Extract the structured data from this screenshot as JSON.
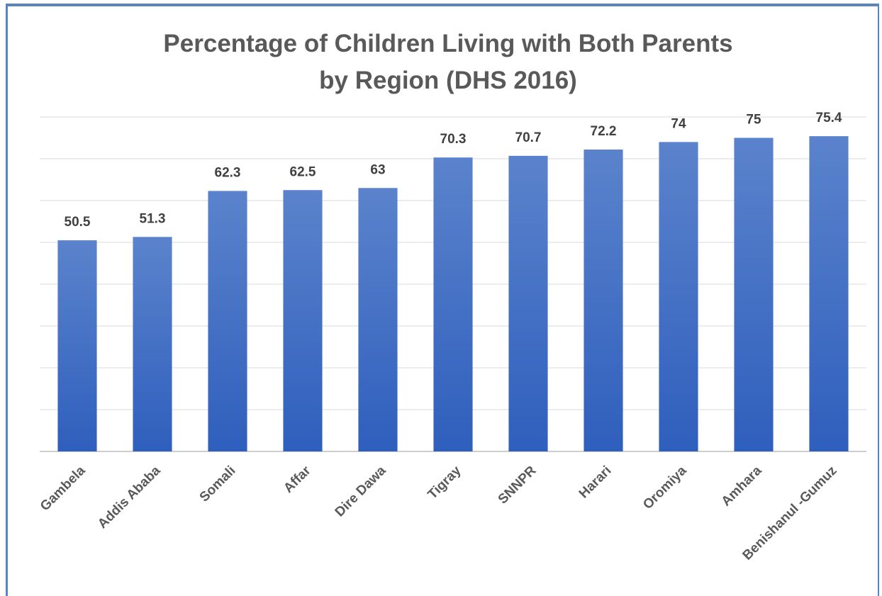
{
  "chart_data": {
    "type": "bar",
    "title_lines": [
      "Percentage of Children Living with Both Parents",
      "by Region (DHS 2016)"
    ],
    "categories": [
      "Gambela",
      "Addis Ababa",
      "Somali",
      "Affar",
      "Dire Dawa",
      "Tigray",
      "SNNPR",
      "Harari",
      "Oromiya",
      "Amhara",
      "Benishanul -Gumuz"
    ],
    "values": [
      50.5,
      51.3,
      62.3,
      62.5,
      63,
      70.3,
      70.7,
      72.2,
      74,
      75,
      75.4
    ],
    "value_labels": [
      "50.5",
      "51.3",
      "62.3",
      "62.5",
      "63",
      "70.3",
      "70.7",
      "72.2",
      "74",
      "75",
      "75.4"
    ],
    "ylim": [
      0,
      80
    ],
    "gridlines": true,
    "y_tick_labels_shown": false,
    "legend": "none",
    "bar_color_top": "#5b83cc",
    "bar_color_bottom": "#2f5fbd",
    "title_color": "#595959",
    "frame_color": "#5a84c0"
  }
}
